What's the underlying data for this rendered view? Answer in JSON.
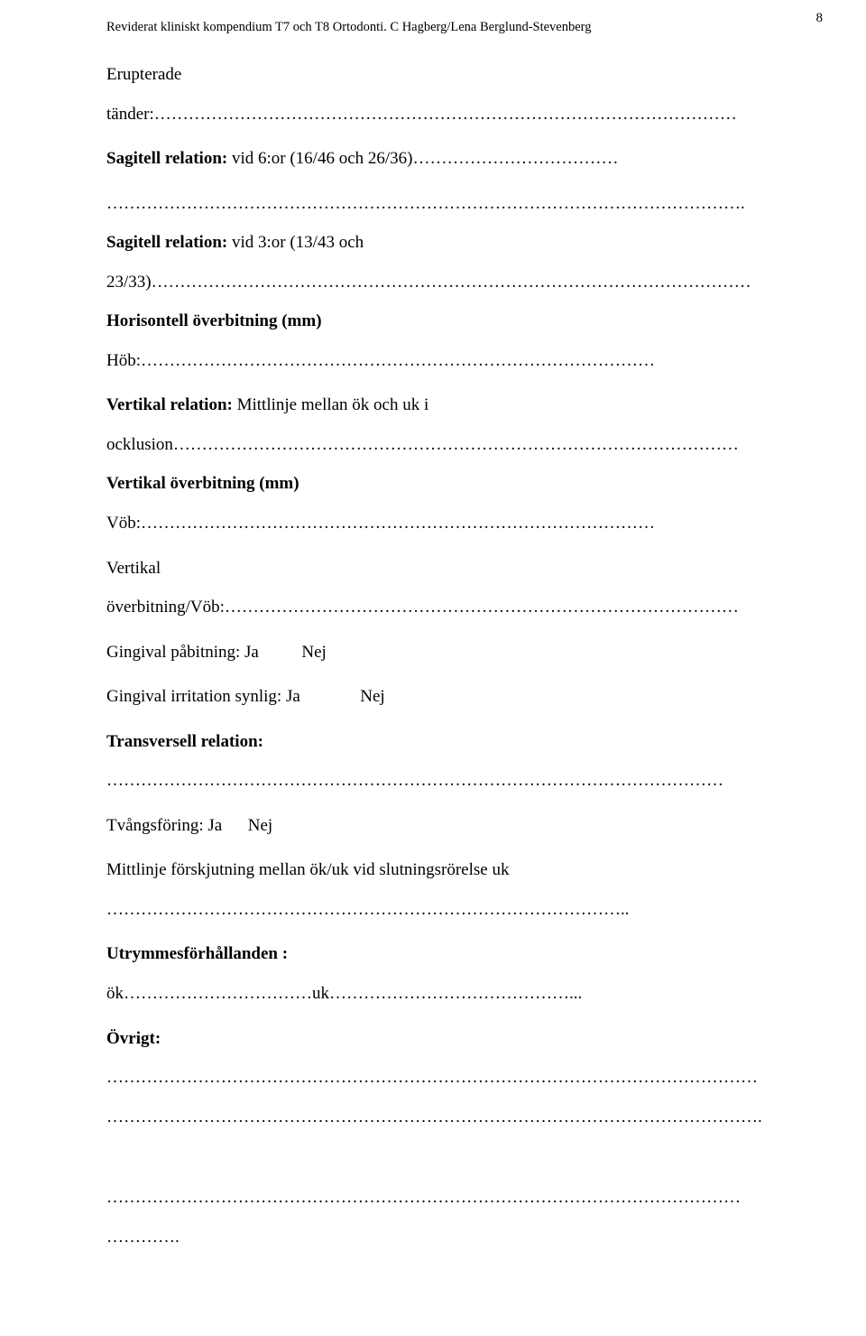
{
  "header": "Reviderat kliniskt kompendium T7 och T8 Ortodonti. C Hagberg/Lena Berglund-Stevenberg",
  "page_number": "8",
  "lines": {
    "l1a": "Erupterade",
    "l1b": "tänder:…………………………………………………………………………………………",
    "l2_bold": "Sagitell relation:",
    "l2_rest": " vid 6:or (16/46 och 26/36)………………………………",
    "l3": "………………………………………………………………………………………………….",
    "l4_bold": "Sagitell relation:",
    "l4_rest": " vid 3:or (13/43 och",
    "l5": "23/33)……………………………………………………………………………………………",
    "l6_bold": "Horisontell överbitning (mm)",
    "l7": "Höb:………………………………………………………………………………",
    "l8_bold": "Vertikal relation: ",
    "l8_rest": "Mittlinje mellan ök och uk i",
    "l9": "ocklusion………………………………………………………………………………………",
    "l10_bold": "Vertikal överbitning (mm)",
    "l11": "Vöb:………………………………………………………………………………",
    "l12": "Vertikal",
    "l13": "överbitning/Vöb:………………………………………………………………………………",
    "l14": "Gingival påbitning: Ja    Nej ",
    "l15": "Gingival irritation synlig: Ja     Nej ",
    "l16_bold": "Transversell relation:",
    "l17": "………………………………………………………………………………………………",
    "l18": "Tvångsföring:  Ja    Nej ",
    "l19": "Mittlinje förskjutning mellan ök/uk vid slutningsrörelse uk",
    "l20": "………………………………………………………………………………..",
    "l21_bold": "Utrymmesförhållanden :",
    "l22": "ök……………………………uk……………………………………...",
    "l23_bold": "Övrigt:",
    "l24": "……………………………………………………………………………………………………",
    "l25": "…………………………………………………………………………………………………….",
    "l26": "…………………………………………………………………………………………………",
    "l27": "…………."
  }
}
